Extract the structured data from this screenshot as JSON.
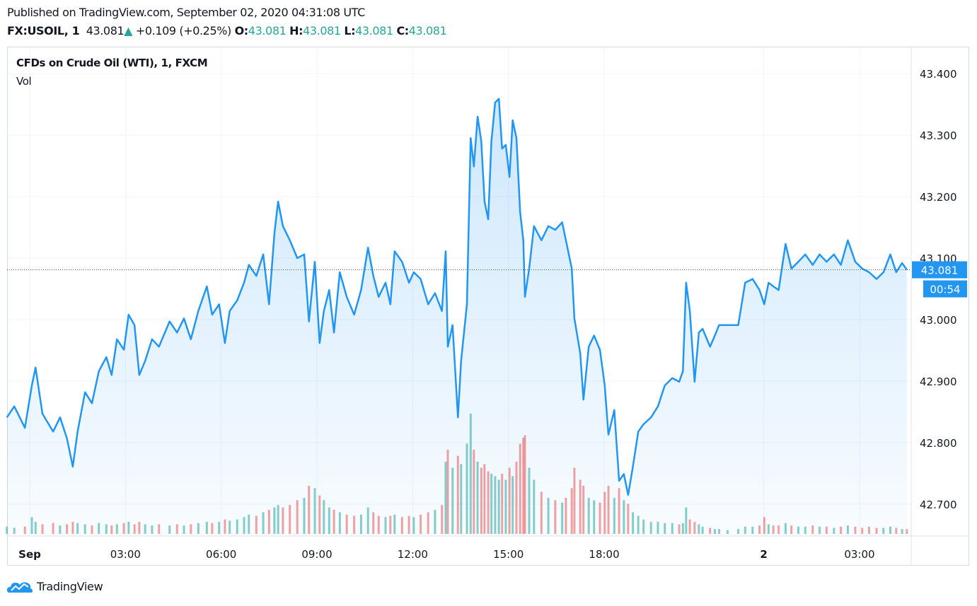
{
  "header": {
    "published": "Published on TradingView.com, September 02, 2020 04:31:08 UTC",
    "symbol": "FX:USOIL, 1",
    "last": "43.081",
    "change": "+0.109 (+0.25%)",
    "o_label": "O:",
    "o": "43.081",
    "h_label": "H:",
    "h": "43.081",
    "l_label": "L:",
    "l": "43.081",
    "c_label": "C:",
    "c": "43.081"
  },
  "legend": {
    "title": "CFDs on Crude Oil (WTI), 1, FXCM",
    "vol": "Vol"
  },
  "brand": {
    "name": "TradingView",
    "icon": "tradingview-cloud-logo"
  },
  "colors": {
    "line": "#2196f3",
    "up": "#26a69a",
    "down": "#ef5350",
    "grid": "#f0f3fa",
    "label_bg": "#2196f3"
  },
  "chart_data": {
    "type": "area",
    "title": "CFDs on Crude Oil (WTI), 1, FXCM",
    "ylim": [
      42.65,
      43.46
    ],
    "y_ticks": [
      "43.400",
      "43.300",
      "43.200",
      "43.100",
      "43.000",
      "42.900",
      "42.800",
      "42.700"
    ],
    "x_ticks": [
      {
        "t": "2020-09-01 00:00",
        "label": "Sep"
      },
      {
        "t": "2020-09-01 03:00",
        "label": "03:00"
      },
      {
        "t": "2020-09-01 06:00",
        "label": "06:00"
      },
      {
        "t": "2020-09-01 09:00",
        "label": "09:00"
      },
      {
        "t": "2020-09-01 12:00",
        "label": "12:00"
      },
      {
        "t": "2020-09-01 15:00",
        "label": "15:00"
      },
      {
        "t": "2020-09-01 18:00",
        "label": "18:00"
      },
      {
        "t": "2020-09-02 00:00",
        "label": "2"
      },
      {
        "t": "2020-09-02 03:00",
        "label": "03:00"
      }
    ],
    "last_price_label": "43.081",
    "countdown_label": "00:54",
    "grid": true,
    "series_fields": [
      "time",
      "price",
      "volume"
    ],
    "series": [
      [
        "2020-08-31 23:17",
        42.841,
        6
      ],
      [
        "2020-08-31 23:31",
        42.859,
        5
      ],
      [
        "2020-08-31 23:51",
        42.824,
        6
      ],
      [
        "2020-09-01 00:04",
        42.893,
        14
      ],
      [
        "2020-09-01 00:11",
        42.922,
        10
      ],
      [
        "2020-09-01 00:24",
        42.847,
        8
      ],
      [
        "2020-09-01 00:44",
        42.818,
        9
      ],
      [
        "2020-09-01 00:57",
        42.841,
        7
      ],
      [
        "2020-09-01 01:10",
        42.807,
        8
      ],
      [
        "2020-09-01 01:21",
        42.761,
        10
      ],
      [
        "2020-09-01 01:30",
        42.818,
        9
      ],
      [
        "2020-09-01 01:44",
        42.882,
        8
      ],
      [
        "2020-09-01 01:57",
        42.864,
        7
      ],
      [
        "2020-09-01 02:10",
        42.916,
        9
      ],
      [
        "2020-09-01 02:24",
        42.939,
        8
      ],
      [
        "2020-09-01 02:34",
        42.91,
        7
      ],
      [
        "2020-09-01 02:44",
        42.968,
        8
      ],
      [
        "2020-09-01 02:57",
        42.951,
        9
      ],
      [
        "2020-09-01 03:06",
        43.008,
        10
      ],
      [
        "2020-09-01 03:17",
        42.991,
        8
      ],
      [
        "2020-09-01 03:26",
        42.91,
        10
      ],
      [
        "2020-09-01 03:37",
        42.933,
        8
      ],
      [
        "2020-09-01 03:50",
        42.968,
        7
      ],
      [
        "2020-09-01 04:03",
        42.956,
        8
      ],
      [
        "2020-09-01 04:23",
        42.997,
        7
      ],
      [
        "2020-09-01 04:37",
        42.979,
        8
      ],
      [
        "2020-09-01 04:50",
        43.002,
        7
      ],
      [
        "2020-09-01 05:03",
        42.968,
        8
      ],
      [
        "2020-09-01 05:17",
        43.014,
        9
      ],
      [
        "2020-09-01 05:33",
        43.054,
        10
      ],
      [
        "2020-09-01 05:43",
        43.008,
        9
      ],
      [
        "2020-09-01 05:56",
        43.025,
        10
      ],
      [
        "2020-09-01 06:07",
        42.962,
        12
      ],
      [
        "2020-09-01 06:16",
        43.014,
        11
      ],
      [
        "2020-09-01 06:30",
        43.031,
        12
      ],
      [
        "2020-09-01 06:43",
        43.06,
        14
      ],
      [
        "2020-09-01 06:52",
        43.089,
        16
      ],
      [
        "2020-09-01 07:06",
        43.071,
        15
      ],
      [
        "2020-09-01 07:19",
        43.106,
        18
      ],
      [
        "2020-09-01 07:30",
        43.025,
        20
      ],
      [
        "2020-09-01 07:40",
        43.14,
        22
      ],
      [
        "2020-09-01 07:47",
        43.192,
        24
      ],
      [
        "2020-09-01 07:56",
        43.152,
        22
      ],
      [
        "2020-09-01 08:09",
        43.129,
        24
      ],
      [
        "2020-09-01 08:23",
        43.1,
        28
      ],
      [
        "2020-09-01 08:36",
        43.106,
        30
      ],
      [
        "2020-09-01 08:45",
        42.997,
        40
      ],
      [
        "2020-09-01 08:56",
        43.094,
        38
      ],
      [
        "2020-09-01 09:05",
        42.962,
        32
      ],
      [
        "2020-09-01 09:13",
        43.014,
        28
      ],
      [
        "2020-09-01 09:23",
        43.048,
        22
      ],
      [
        "2020-09-01 09:32",
        42.979,
        20
      ],
      [
        "2020-09-01 09:43",
        43.077,
        18
      ],
      [
        "2020-09-01 09:56",
        43.037,
        16
      ],
      [
        "2020-09-01 10:10",
        43.008,
        15
      ],
      [
        "2020-09-01 10:23",
        43.048,
        16
      ],
      [
        "2020-09-01 10:36",
        43.117,
        22
      ],
      [
        "2020-09-01 10:46",
        43.071,
        18
      ],
      [
        "2020-09-01 10:56",
        43.037,
        15
      ],
      [
        "2020-09-01 11:09",
        43.06,
        14
      ],
      [
        "2020-09-01 11:18",
        43.025,
        15
      ],
      [
        "2020-09-01 11:26",
        43.111,
        16
      ],
      [
        "2020-09-01 11:40",
        43.094,
        14
      ],
      [
        "2020-09-01 11:53",
        43.06,
        15
      ],
      [
        "2020-09-01 12:02",
        43.077,
        14
      ],
      [
        "2020-09-01 12:15",
        43.066,
        16
      ],
      [
        "2020-09-01 12:29",
        43.025,
        18
      ],
      [
        "2020-09-01 12:42",
        43.043,
        20
      ],
      [
        "2020-09-01 12:55",
        43.014,
        24
      ],
      [
        "2020-09-01 13:02",
        43.111,
        60
      ],
      [
        "2020-09-01 13:06",
        42.956,
        70
      ],
      [
        "2020-09-01 13:15",
        42.991,
        55
      ],
      [
        "2020-09-01 13:25",
        42.841,
        65
      ],
      [
        "2020-09-01 13:31",
        42.933,
        58
      ],
      [
        "2020-09-01 13:42",
        43.025,
        75
      ],
      [
        "2020-09-01 13:49",
        43.295,
        100
      ],
      [
        "2020-09-01 13:55",
        43.249,
        70
      ],
      [
        "2020-09-01 14:02",
        43.33,
        60
      ],
      [
        "2020-09-01 14:09",
        43.29,
        55
      ],
      [
        "2020-09-01 14:15",
        43.192,
        58
      ],
      [
        "2020-09-01 14:22",
        43.163,
        52
      ],
      [
        "2020-09-01 14:28",
        43.29,
        50
      ],
      [
        "2020-09-01 14:35",
        43.353,
        48
      ],
      [
        "2020-09-01 14:42",
        43.359,
        45
      ],
      [
        "2020-09-01 14:48",
        43.278,
        50
      ],
      [
        "2020-09-01 14:55",
        43.284,
        45
      ],
      [
        "2020-09-01 15:02",
        43.232,
        55
      ],
      [
        "2020-09-01 15:08",
        43.324,
        48
      ],
      [
        "2020-09-01 15:15",
        43.295,
        60
      ],
      [
        "2020-09-01 15:22",
        43.175,
        75
      ],
      [
        "2020-09-01 15:28",
        43.129,
        80
      ],
      [
        "2020-09-01 15:31",
        43.037,
        82
      ],
      [
        "2020-09-01 15:39",
        43.083,
        55
      ],
      [
        "2020-09-01 15:48",
        43.152,
        45
      ],
      [
        "2020-09-01 16:02",
        43.129,
        35
      ],
      [
        "2020-09-01 16:15",
        43.152,
        30
      ],
      [
        "2020-09-01 16:28",
        43.146,
        28
      ],
      [
        "2020-09-01 16:41",
        43.158,
        26
      ],
      [
        "2020-09-01 16:48",
        43.129,
        30
      ],
      [
        "2020-09-01 16:59",
        43.083,
        38
      ],
      [
        "2020-09-01 17:04",
        43.002,
        55
      ],
      [
        "2020-09-01 17:15",
        42.945,
        45
      ],
      [
        "2020-09-01 17:21",
        42.87,
        40
      ],
      [
        "2020-09-01 17:31",
        42.956,
        30
      ],
      [
        "2020-09-01 17:41",
        42.974,
        28
      ],
      [
        "2020-09-01 17:52",
        42.951,
        26
      ],
      [
        "2020-09-01 18:01",
        42.893,
        35
      ],
      [
        "2020-09-01 18:08",
        42.813,
        40
      ],
      [
        "2020-09-01 18:19",
        42.853,
        30
      ],
      [
        "2020-09-01 18:28",
        42.738,
        38
      ],
      [
        "2020-09-01 18:37",
        42.749,
        28
      ],
      [
        "2020-09-01 18:45",
        42.715,
        25
      ],
      [
        "2020-09-01 18:54",
        42.761,
        18
      ],
      [
        "2020-09-01 19:04",
        42.818,
        15
      ],
      [
        "2020-09-01 19:14",
        42.83,
        12
      ],
      [
        "2020-09-01 19:28",
        42.841,
        10
      ],
      [
        "2020-09-01 19:41",
        42.859,
        10
      ],
      [
        "2020-09-01 19:54",
        42.893,
        9
      ],
      [
        "2020-09-01 20:08",
        42.905,
        9
      ],
      [
        "2020-09-01 20:21",
        42.899,
        8
      ],
      [
        "2020-09-01 20:28",
        42.916,
        9
      ],
      [
        "2020-09-01 20:34",
        43.06,
        22
      ],
      [
        "2020-09-01 20:41",
        43.014,
        12
      ],
      [
        "2020-09-01 20:50",
        42.899,
        10
      ],
      [
        "2020-09-01 20:58",
        42.979,
        8
      ],
      [
        "2020-09-01 22:05",
        42.985,
        6
      ],
      [
        "2020-09-01 22:19",
        42.956,
        5
      ],
      [
        "2020-09-01 22:28",
        42.974,
        4
      ],
      [
        "2020-09-01 22:36",
        42.991,
        4
      ],
      [
        "2020-09-01 22:52",
        42.991,
        3
      ],
      [
        "2020-09-01 23:12",
        42.991,
        4
      ],
      [
        "2020-09-01 23:25",
        43.06,
        6
      ],
      [
        "2020-09-01 23:39",
        43.066,
        6
      ],
      [
        "2020-09-01 23:52",
        43.048,
        7
      ],
      [
        "2020-09-02 00:01",
        43.025,
        14
      ],
      [
        "2020-09-02 00:09",
        43.06,
        8
      ],
      [
        "2020-09-02 00:18",
        43.054,
        7
      ],
      [
        "2020-09-02 00:28",
        43.048,
        7
      ],
      [
        "2020-09-02 00:41",
        43.123,
        9
      ],
      [
        "2020-09-02 00:52",
        43.083,
        7
      ],
      [
        "2020-09-02 01:05",
        43.094,
        6
      ],
      [
        "2020-09-02 01:18",
        43.106,
        6
      ],
      [
        "2020-09-02 01:32",
        43.089,
        7
      ],
      [
        "2020-09-02 01:45",
        43.106,
        6
      ],
      [
        "2020-09-02 01:58",
        43.094,
        6
      ],
      [
        "2020-09-02 02:12",
        43.106,
        5
      ],
      [
        "2020-09-02 02:25",
        43.089,
        6
      ],
      [
        "2020-09-02 02:38",
        43.129,
        7
      ],
      [
        "2020-09-02 02:52",
        43.094,
        6
      ],
      [
        "2020-09-02 03:05",
        43.083,
        5
      ],
      [
        "2020-09-02 03:18",
        43.077,
        6
      ],
      [
        "2020-09-02 03:32",
        43.066,
        5
      ],
      [
        "2020-09-02 03:45",
        43.077,
        5
      ],
      [
        "2020-09-02 03:58",
        43.106,
        6
      ],
      [
        "2020-09-02 04:09",
        43.077,
        5
      ],
      [
        "2020-09-02 04:20",
        43.092,
        4
      ],
      [
        "2020-09-02 04:29",
        43.081,
        4
      ]
    ]
  }
}
